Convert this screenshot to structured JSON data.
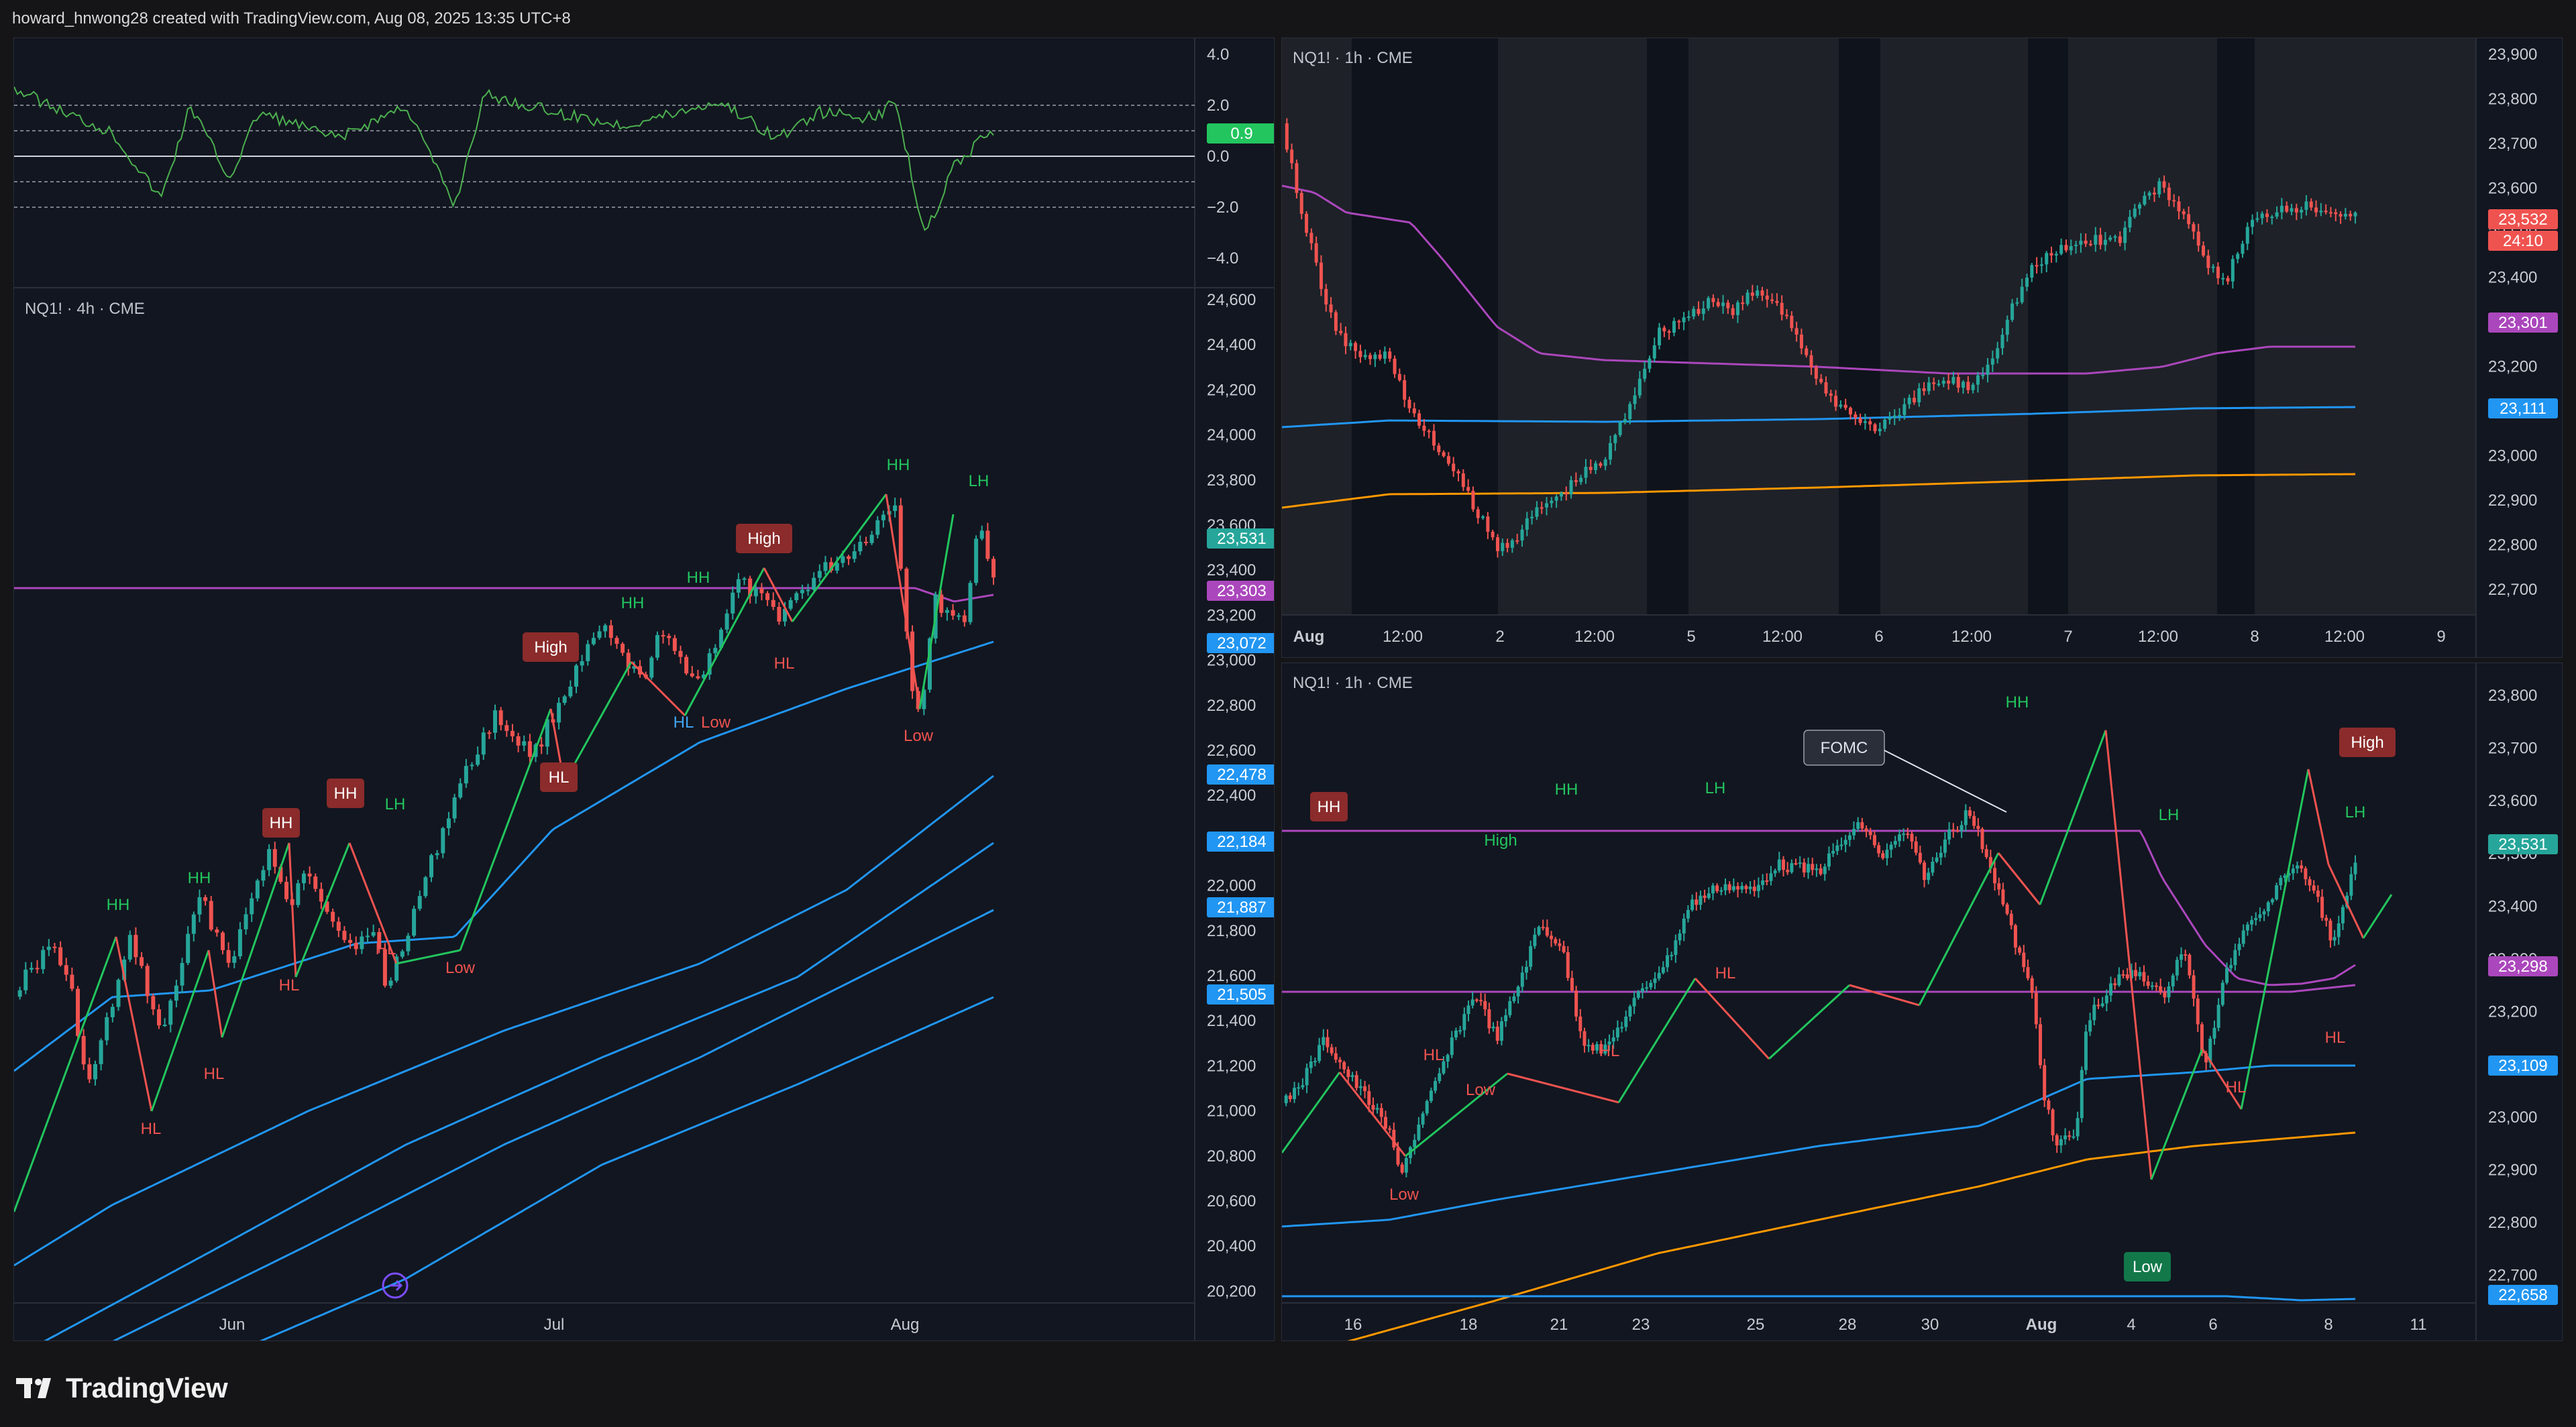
{
  "header": {
    "credit": "howard_hnwong28 created with TradingView.com, Aug 08, 2025 13:35 UTC+8"
  },
  "brand": {
    "name": "TradingView"
  },
  "colors": {
    "bg": "#151518",
    "pane": "#121620",
    "up": "#26a69a",
    "down": "#ef5350",
    "zigzag_up": "#22c55e",
    "zigzag_down": "#ef5350",
    "ma_blue": "#2196f3",
    "ma_purple": "#ab47bc",
    "ma_orange": "#ff9800",
    "oscillator": "#4caf50"
  },
  "left": {
    "title": "NQ1! · 4h · CME",
    "oscillator": {
      "ticks": [
        "4.0",
        "2.0",
        "0.0",
        "−2.0",
        "−4.0"
      ],
      "value_badge": "0.9"
    },
    "price_ticks": [
      "24,600",
      "24,400",
      "24,200",
      "24,000",
      "23,800",
      "23,600",
      "23,400",
      "23,200",
      "23,000",
      "22,800",
      "22,600",
      "22,400",
      "22,200",
      "22,000",
      "21,800",
      "21,600",
      "21,400",
      "21,200",
      "21,000",
      "20,800",
      "20,600",
      "20,400",
      "20,200"
    ],
    "badges": [
      {
        "label": "23,531",
        "color": "#26a69a"
      },
      {
        "label": "23,303",
        "color": "#ab47bc"
      },
      {
        "label": "23,072",
        "color": "#2196f3"
      },
      {
        "label": "22,478",
        "color": "#2196f3"
      },
      {
        "label": "22,184",
        "color": "#2196f3"
      },
      {
        "label": "21,887",
        "color": "#2196f3"
      },
      {
        "label": "21,505",
        "color": "#2196f3"
      }
    ],
    "time_ticks": [
      "Jun",
      "Jul",
      "Aug"
    ],
    "labels": [
      {
        "text": "HH",
        "kind": "plain-up"
      },
      {
        "text": "HH",
        "kind": "plain-up"
      },
      {
        "text": "HH",
        "kind": "box"
      },
      {
        "text": "HH",
        "kind": "box"
      },
      {
        "text": "LH",
        "kind": "plain-up"
      },
      {
        "text": "High",
        "kind": "box"
      },
      {
        "text": "HH",
        "kind": "plain-up"
      },
      {
        "text": "HH",
        "kind": "plain-up"
      },
      {
        "text": "High",
        "kind": "box"
      },
      {
        "text": "HH",
        "kind": "plain-up"
      },
      {
        "text": "LH",
        "kind": "plain-up"
      },
      {
        "text": "HL",
        "kind": "plain-down"
      },
      {
        "text": "HL",
        "kind": "plain-down"
      },
      {
        "text": "HL",
        "kind": "plain-down"
      },
      {
        "text": "HL",
        "kind": "plain-down"
      },
      {
        "text": "Low",
        "kind": "plain-down"
      },
      {
        "text": "HL",
        "kind": "box"
      },
      {
        "text": "HL",
        "kind": "plain-blue"
      },
      {
        "text": "Low",
        "kind": "plain-down"
      },
      {
        "text": "HL",
        "kind": "plain-down"
      },
      {
        "text": "Low",
        "kind": "plain-down"
      }
    ]
  },
  "top_right": {
    "title": "NQ1! · 1h · CME",
    "price_ticks": [
      "23,900",
      "23,800",
      "23,700",
      "23,600",
      "23,500",
      "23,400",
      "23,300",
      "23,200",
      "23,100",
      "23,000",
      "22,900",
      "22,800",
      "22,700"
    ],
    "badges": [
      {
        "label": "23,532",
        "color": "#ef5350"
      },
      {
        "label": "24:10",
        "color": "#ef5350"
      },
      {
        "label": "23,301",
        "color": "#ab47bc"
      },
      {
        "label": "23,111",
        "color": "#2196f3"
      }
    ],
    "time_ticks": [
      "Aug",
      "12:00",
      "2",
      "12:00",
      "5",
      "12:00",
      "6",
      "12:00",
      "7",
      "12:00",
      "8",
      "12:00",
      "9"
    ]
  },
  "bottom_right": {
    "title": "NQ1! · 1h · CME",
    "price_ticks": [
      "23,800",
      "23,700",
      "23,600",
      "23,500",
      "23,400",
      "23,300",
      "23,200",
      "23,100",
      "23,000",
      "22,900",
      "22,800",
      "22,700"
    ],
    "badges": [
      {
        "label": "23,531",
        "color": "#26a69a"
      },
      {
        "label": "23,298",
        "color": "#ab47bc"
      },
      {
        "label": "23,109",
        "color": "#2196f3"
      },
      {
        "label": "22,658",
        "color": "#2196f3"
      }
    ],
    "time_ticks": [
      "16",
      "18",
      "21",
      "23",
      "25",
      "28",
      "30",
      "Aug",
      "4",
      "6",
      "8",
      "11"
    ],
    "labels": [
      {
        "text": "HH",
        "kind": "box"
      },
      {
        "text": "High",
        "kind": "plain-up"
      },
      {
        "text": "HH",
        "kind": "plain-up"
      },
      {
        "text": "LH",
        "kind": "plain-up"
      },
      {
        "text": "High",
        "kind": "plain-up"
      },
      {
        "text": "HH",
        "kind": "plain-up"
      },
      {
        "text": "LH",
        "kind": "plain-up"
      },
      {
        "text": "High",
        "kind": "box"
      },
      {
        "text": "LH",
        "kind": "plain-up"
      },
      {
        "text": "Low",
        "kind": "plain-down"
      },
      {
        "text": "HL",
        "kind": "plain-down"
      },
      {
        "text": "Low",
        "kind": "plain-down"
      },
      {
        "text": "HL",
        "kind": "plain-down"
      },
      {
        "text": "HL",
        "kind": "plain-down"
      },
      {
        "text": "Low",
        "kind": "box-green"
      },
      {
        "text": "HL",
        "kind": "plain-down"
      },
      {
        "text": "HL",
        "kind": "plain-down"
      }
    ],
    "callout": "FOMC"
  }
}
